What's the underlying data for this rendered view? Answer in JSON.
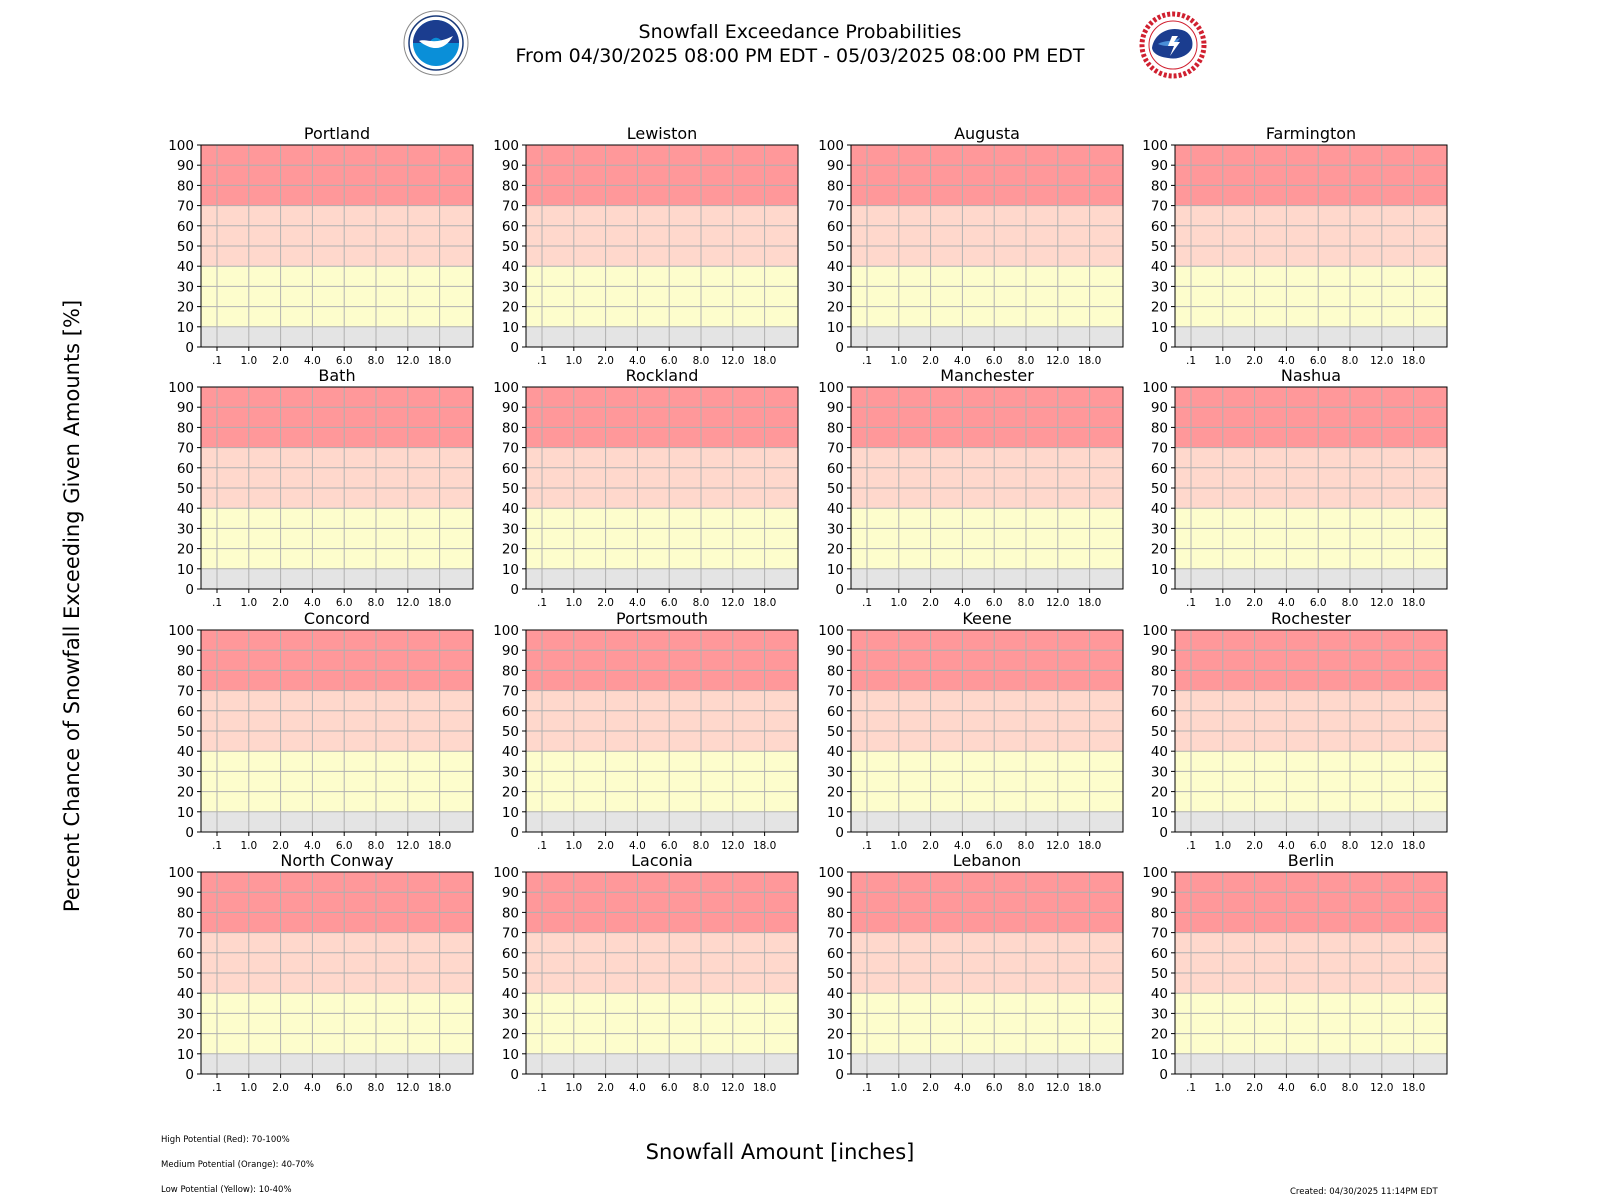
{
  "header": {
    "title": "Snowfall Exceedance Probabilities",
    "subtitle": "From 04/30/2025 08:00 PM EDT - 05/03/2025 08:00 PM EDT",
    "logos": [
      "noaa-logo",
      "nws-logo"
    ]
  },
  "footer": {
    "legend": [
      "High Potential (Red): 70-100%",
      "Medium Potential (Orange): 40-70%",
      "Low Potential (Yellow): 10-40%"
    ],
    "created": "Created: 04/30/2025 11:14PM EDT"
  },
  "chart_data": {
    "type": "line",
    "xlabel": "Snowfall Amount [inches]",
    "ylabel": "Percent Chance of Snowfall Exceeding Given Amounts [%]",
    "x_ticks": [
      ".1",
      "1.0",
      "2.0",
      "4.0",
      "6.0",
      "8.0",
      "12.0",
      "18.0"
    ],
    "ylim": [
      0,
      100
    ],
    "y_ticks": [
      0,
      10,
      20,
      30,
      40,
      50,
      60,
      70,
      80,
      90,
      100
    ],
    "grid": true,
    "bands": [
      {
        "from": 0,
        "to": 10,
        "color": "#e4e4e4"
      },
      {
        "from": 10,
        "to": 40,
        "color": "#fdfdcc"
      },
      {
        "from": 40,
        "to": 70,
        "color": "#ffd8cc"
      },
      {
        "from": 70,
        "to": 100,
        "color": "#ff989a"
      }
    ],
    "panels": [
      "Portland",
      "Lewiston",
      "Augusta",
      "Farmington",
      "Bath",
      "Rockland",
      "Manchester",
      "Nashua",
      "Concord",
      "Portsmouth",
      "Keene",
      "Rochester",
      "North Conway",
      "Laconia",
      "Lebanon",
      "Berlin"
    ],
    "series": []
  }
}
